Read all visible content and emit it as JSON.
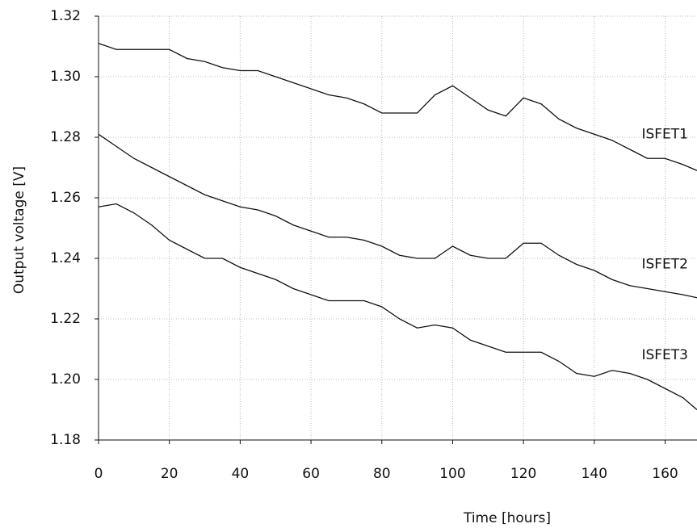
{
  "chart_data": {
    "type": "line",
    "x_label": "Time [hours]",
    "y_label": "Output voltage [V]",
    "x": [
      0,
      5,
      10,
      15,
      20,
      25,
      30,
      35,
      40,
      45,
      50,
      55,
      60,
      65,
      70,
      75,
      80,
      85,
      90,
      95,
      100,
      105,
      110,
      115,
      120,
      125,
      130,
      135,
      140,
      145,
      150,
      155,
      160,
      165,
      169
    ],
    "series": [
      {
        "name": "ISFET1",
        "color": "#111111",
        "values": [
          1.311,
          1.309,
          1.309,
          1.309,
          1.309,
          1.306,
          1.305,
          1.303,
          1.302,
          1.302,
          1.3,
          1.298,
          1.296,
          1.294,
          1.293,
          1.291,
          1.288,
          1.288,
          1.288,
          1.294,
          1.297,
          1.293,
          1.289,
          1.287,
          1.293,
          1.291,
          1.286,
          1.283,
          1.281,
          1.279,
          1.276,
          1.273,
          1.273,
          1.271,
          1.269
        ]
      },
      {
        "name": "ISFET2",
        "color": "#111111",
        "values": [
          1.281,
          1.277,
          1.273,
          1.27,
          1.267,
          1.264,
          1.261,
          1.259,
          1.257,
          1.256,
          1.254,
          1.251,
          1.249,
          1.247,
          1.247,
          1.246,
          1.244,
          1.241,
          1.24,
          1.24,
          1.244,
          1.241,
          1.24,
          1.24,
          1.245,
          1.245,
          1.241,
          1.238,
          1.236,
          1.233,
          1.231,
          1.23,
          1.229,
          1.228,
          1.227
        ]
      },
      {
        "name": "ISFET3",
        "color": "#111111",
        "values": [
          1.257,
          1.258,
          1.255,
          1.251,
          1.246,
          1.243,
          1.24,
          1.24,
          1.237,
          1.235,
          1.233,
          1.23,
          1.228,
          1.226,
          1.226,
          1.226,
          1.224,
          1.22,
          1.217,
          1.218,
          1.217,
          1.213,
          1.211,
          1.209,
          1.209,
          1.209,
          1.206,
          1.202,
          1.201,
          1.203,
          1.202,
          1.2,
          1.197,
          1.194,
          1.19
        ]
      }
    ],
    "xlim": [
      0,
      169
    ],
    "xticks": [
      0,
      20,
      40,
      60,
      80,
      100,
      120,
      140,
      160
    ],
    "ylim": [
      1.18,
      1.32
    ],
    "yticks": [
      1.18,
      {
        "value": 1.2,
        "label": "1.20"
      },
      1.22,
      1.24,
      1.26,
      1.28,
      {
        "value": 1.3,
        "label": "1.30"
      },
      1.32
    ],
    "grid": true
  }
}
